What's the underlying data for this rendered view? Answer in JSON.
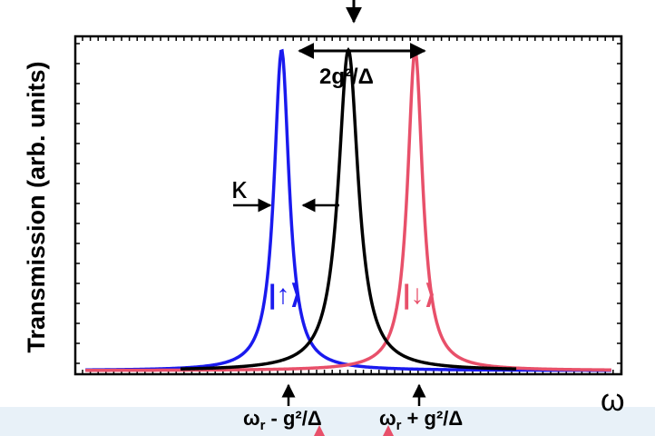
{
  "chart_data": {
    "type": "line",
    "title": "",
    "ylabel": "Transmission (arb. units)",
    "xlabel": "ω",
    "xlim": [
      -1.35,
      1.35
    ],
    "ylim": [
      0,
      1.02
    ],
    "grid": false,
    "series": [
      {
        "name": "|↑⟩",
        "color": "#1a1aee",
        "center": -0.33,
        "halfwidth": 0.045,
        "peak": 1.0,
        "x_range": [
          -1.3,
          1.3
        ]
      },
      {
        "name": "|↓⟩",
        "color": "#e8506a",
        "center": 0.33,
        "halfwidth": 0.045,
        "peak": 1.0,
        "x_range": [
          -1.3,
          1.3
        ]
      },
      {
        "name": "",
        "color": "#000000",
        "center": 0.0,
        "halfwidth": 0.06,
        "peak": 1.0,
        "x_range": [
          -0.83,
          0.83
        ]
      }
    ],
    "annotations": {
      "splitting": "2g²/Δ",
      "linewidth": "κ",
      "tick_minus_main": "ω",
      "tick_minus_sub": "r",
      "tick_minus_rest": " - g²/Δ",
      "tick_plus_main": "ω",
      "tick_plus_sub": "r",
      "tick_plus_rest": " + g²/Δ"
    }
  }
}
